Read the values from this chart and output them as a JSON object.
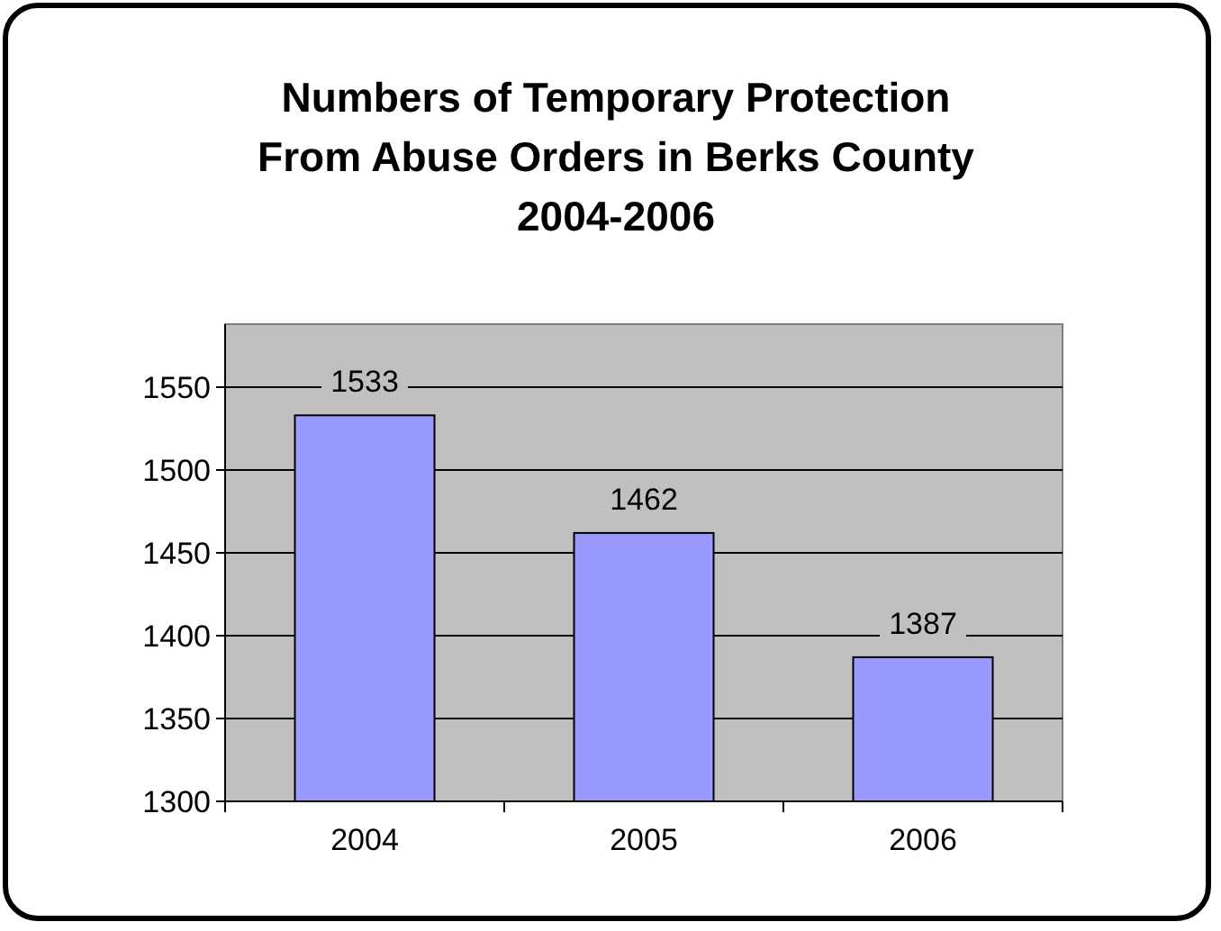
{
  "chart_data": {
    "type": "bar",
    "title": "Numbers of Temporary Protection\nFrom Abuse Orders in Berks County\n2004-2006",
    "categories": [
      "2004",
      "2005",
      "2006"
    ],
    "values": [
      1533,
      1462,
      1387
    ],
    "color": "#9999ff",
    "ylim": [
      1300,
      1550
    ],
    "yticks": [
      1300,
      1350,
      1400,
      1450,
      1500,
      1550
    ],
    "grid": "y",
    "data_labels": true
  }
}
